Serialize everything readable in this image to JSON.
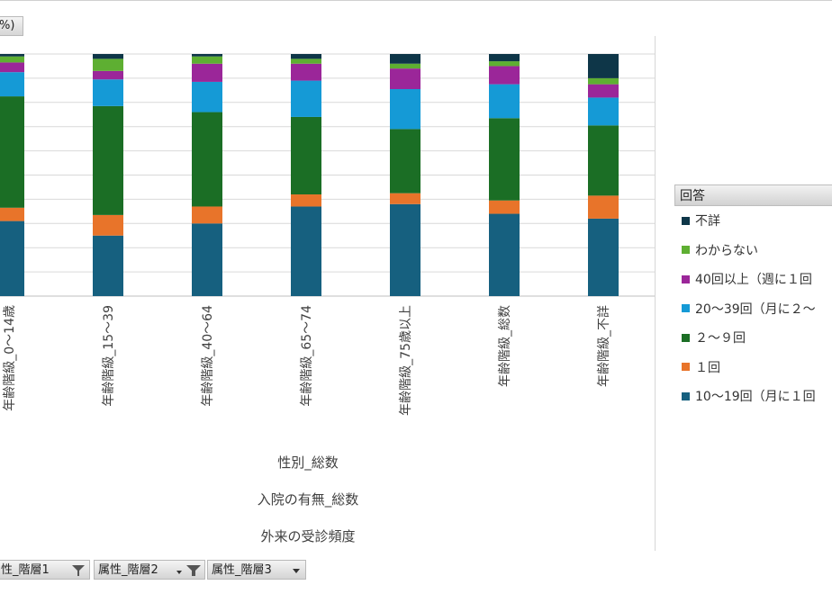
{
  "top_pill": {
    "label": "%)"
  },
  "chart_data": {
    "type": "bar",
    "stacked": true,
    "percent": true,
    "categories": [
      "年齢階級_0～14歳",
      "年齢階級_15～39",
      "年齢階級_40～64",
      "年齢階級_65～74",
      "年齢階級_75歳以上",
      "年齢階級_総数",
      "年齢階級_不詳"
    ],
    "series": [
      {
        "name": "10～19回（月に１回",
        "color": "#16607f",
        "values": [
          31,
          25,
          30,
          37,
          38,
          34,
          32
        ]
      },
      {
        "name": "１回",
        "color": "#e8742a",
        "values": [
          5.5,
          8.5,
          7,
          5,
          4.5,
          5.5,
          9.5
        ]
      },
      {
        "name": "２～９回",
        "color": "#1b6e25",
        "values": [
          46,
          45,
          39,
          32,
          26.5,
          34,
          29
        ]
      },
      {
        "name": "20～39回（月に２～",
        "color": "#159ad6",
        "values": [
          10,
          11,
          12.5,
          15,
          16.5,
          14,
          11.5
        ]
      },
      {
        "name": "40回以上（週に１回",
        "color": "#9b2699",
        "values": [
          4,
          3.5,
          7.5,
          7,
          8.5,
          7.5,
          5.5
        ]
      },
      {
        "name": "わからない",
        "color": "#5eaf32",
        "values": [
          2.5,
          5,
          3,
          2,
          2,
          2,
          2.5
        ]
      },
      {
        "name": "不詳",
        "color": "#0e3648",
        "values": [
          1,
          2,
          1,
          2,
          4,
          3,
          10
        ]
      }
    ],
    "ylim": [
      0,
      100
    ],
    "grid": true,
    "category_titles": [
      "性別_総数",
      "入院の有無_総数",
      "外来の受診頻度"
    ],
    "legend": {
      "title": "回答",
      "placement": "right"
    }
  },
  "filters": [
    "性_階層1",
    "属性_階層2",
    "属性_階層3"
  ]
}
